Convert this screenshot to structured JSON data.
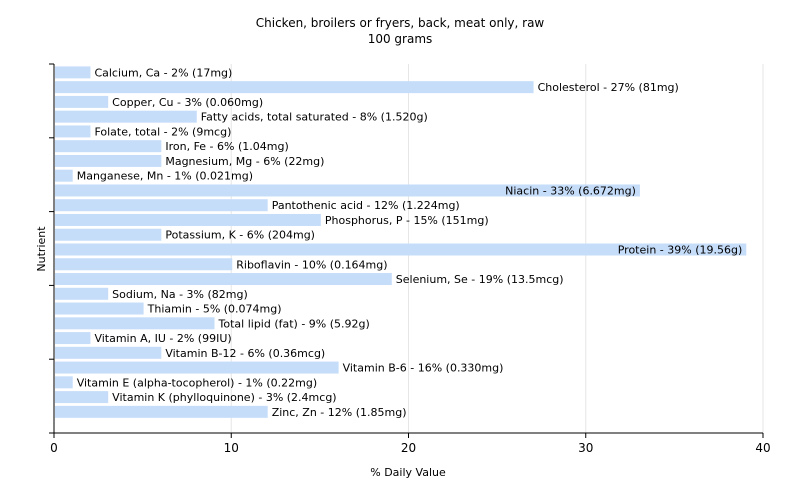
{
  "chart_data": {
    "type": "bar",
    "orientation": "horizontal",
    "title": "Chicken, broilers or fryers, back, meat only, raw",
    "subtitle": "100 grams",
    "xlabel": "% Daily Value",
    "ylabel": "Nutrient",
    "xlim": [
      0,
      40
    ],
    "xticks": [
      "0",
      "10",
      "20",
      "30",
      "40"
    ],
    "grid": true,
    "bar_color": "#c6ddfa",
    "categories": [
      "Calcium, Ca",
      "Cholesterol",
      "Copper, Cu",
      "Fatty acids, total saturated",
      "Folate, total",
      "Iron, Fe",
      "Magnesium, Mg",
      "Manganese, Mn",
      "Niacin",
      "Pantothenic acid",
      "Phosphorus, P",
      "Potassium, K",
      "Protein",
      "Riboflavin",
      "Selenium, Se",
      "Sodium, Na",
      "Thiamin",
      "Total lipid (fat)",
      "Vitamin A, IU",
      "Vitamin B-12",
      "Vitamin B-6",
      "Vitamin E (alpha-tocopherol)",
      "Vitamin K (phylloquinone)",
      "Zinc, Zn"
    ],
    "values": [
      2,
      27,
      3,
      8,
      2,
      6,
      6,
      1,
      33,
      12,
      15,
      6,
      39,
      10,
      19,
      3,
      5,
      9,
      2,
      6,
      16,
      1,
      3,
      12
    ],
    "labels": [
      "Calcium, Ca - 2% (17mg)",
      "Cholesterol - 27% (81mg)",
      "Copper, Cu - 3% (0.060mg)",
      "Fatty acids, total saturated - 8% (1.520g)",
      "Folate, total - 2% (9mcg)",
      "Iron, Fe - 6% (1.04mg)",
      "Magnesium, Mg - 6% (22mg)",
      "Manganese, Mn - 1% (0.021mg)",
      "Niacin - 33% (6.672mg)",
      "Pantothenic acid - 12% (1.224mg)",
      "Phosphorus, P - 15% (151mg)",
      "Potassium, K - 6% (204mg)",
      "Protein - 39% (19.56g)",
      "Riboflavin - 10% (0.164mg)",
      "Selenium, Se - 19% (13.5mcg)",
      "Sodium, Na - 3% (82mg)",
      "Thiamin - 5% (0.074mg)",
      "Total lipid (fat) - 9% (5.92g)",
      "Vitamin A, IU - 2% (99IU)",
      "Vitamin B-12 - 6% (0.36mcg)",
      "Vitamin B-6 - 16% (0.330mg)",
      "Vitamin E (alpha-tocopherol) - 1% (0.22mg)",
      "Vitamin K (phylloquinone) - 3% (2.4mcg)",
      "Zinc, Zn - 12% (1.85mg)"
    ]
  }
}
